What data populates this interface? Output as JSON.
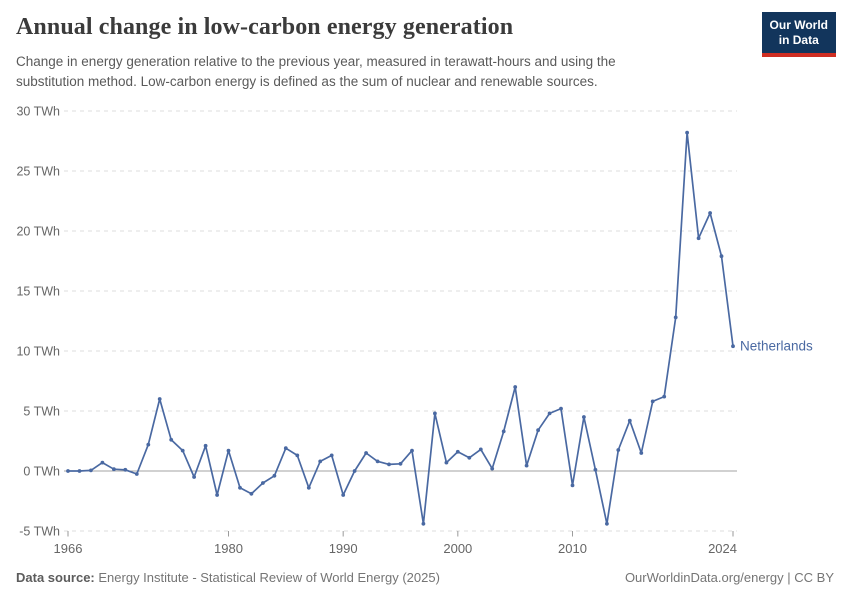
{
  "header": {
    "title": "Annual change in low-carbon energy generation",
    "subtitle": "Change in energy generation relative to the previous year, measured in terawatt-hours and using the substitution method. Low-carbon energy is defined as the sum of nuclear and renewable sources.",
    "logo": {
      "line1": "Our World",
      "line2": "in Data",
      "bg_color": "#12355c",
      "accent_color": "#cf2e22"
    }
  },
  "chart_data": {
    "type": "line",
    "title": "Annual change in low-carbon energy generation",
    "xlabel": "",
    "ylabel": "TWh",
    "xlim": [
      1966,
      2024
    ],
    "ylim": [
      -5,
      30
    ],
    "grid": "horizontal-dashed",
    "zero_line": true,
    "legend_position": "end-of-line-label",
    "yticks": [
      30,
      25,
      20,
      15,
      10,
      5,
      0,
      -5
    ],
    "ytick_labels": [
      "30 TWh",
      "25 TWh",
      "20 TWh",
      "15 TWh",
      "10 TWh",
      "5 TWh",
      "0 TWh",
      "-5 TWh"
    ],
    "xticks": [
      1966,
      1980,
      1990,
      2000,
      2010,
      2024
    ],
    "xtick_labels": [
      "1966",
      "1980",
      "1990",
      "2000",
      "2010",
      "2024"
    ],
    "x": [
      1966,
      1967,
      1968,
      1969,
      1970,
      1971,
      1972,
      1973,
      1974,
      1975,
      1976,
      1977,
      1978,
      1979,
      1980,
      1981,
      1982,
      1983,
      1984,
      1985,
      1986,
      1987,
      1988,
      1989,
      1990,
      1991,
      1992,
      1993,
      1994,
      1995,
      1996,
      1997,
      1998,
      1999,
      2000,
      2001,
      2002,
      2003,
      2004,
      2005,
      2006,
      2007,
      2008,
      2009,
      2010,
      2011,
      2012,
      2013,
      2014,
      2015,
      2016,
      2017,
      2018,
      2019,
      2020,
      2021,
      2022,
      2023,
      2024
    ],
    "series": [
      {
        "name": "Netherlands",
        "color": "#4a69a2",
        "values": [
          0,
          0,
          0.05,
          0.7,
          0.15,
          0.1,
          -0.25,
          2.2,
          6,
          2.6,
          1.7,
          -0.5,
          2.1,
          -2,
          1.7,
          -1.4,
          -1.9,
          -1,
          -0.4,
          1.9,
          1.3,
          -1.4,
          0.8,
          1.3,
          -2,
          0,
          1.5,
          0.8,
          0.55,
          0.6,
          1.7,
          -4.4,
          4.8,
          0.7,
          1.6,
          1.1,
          1.8,
          0.2,
          3.3,
          7,
          0.45,
          3.4,
          4.8,
          5.2,
          -1.2,
          4.5,
          0.1,
          -4.4,
          1.75,
          4.2,
          1.5,
          5.8,
          6.2,
          12.8,
          28.2,
          19.4,
          21.5,
          17.9,
          10.4
        ]
      }
    ],
    "end_label": "Netherlands"
  },
  "footer": {
    "datasource_label": "Data source:",
    "datasource_text": "Energy Institute - Statistical Review of World Energy (2025)",
    "attribution": "OurWorldinData.org/energy | CC BY"
  }
}
